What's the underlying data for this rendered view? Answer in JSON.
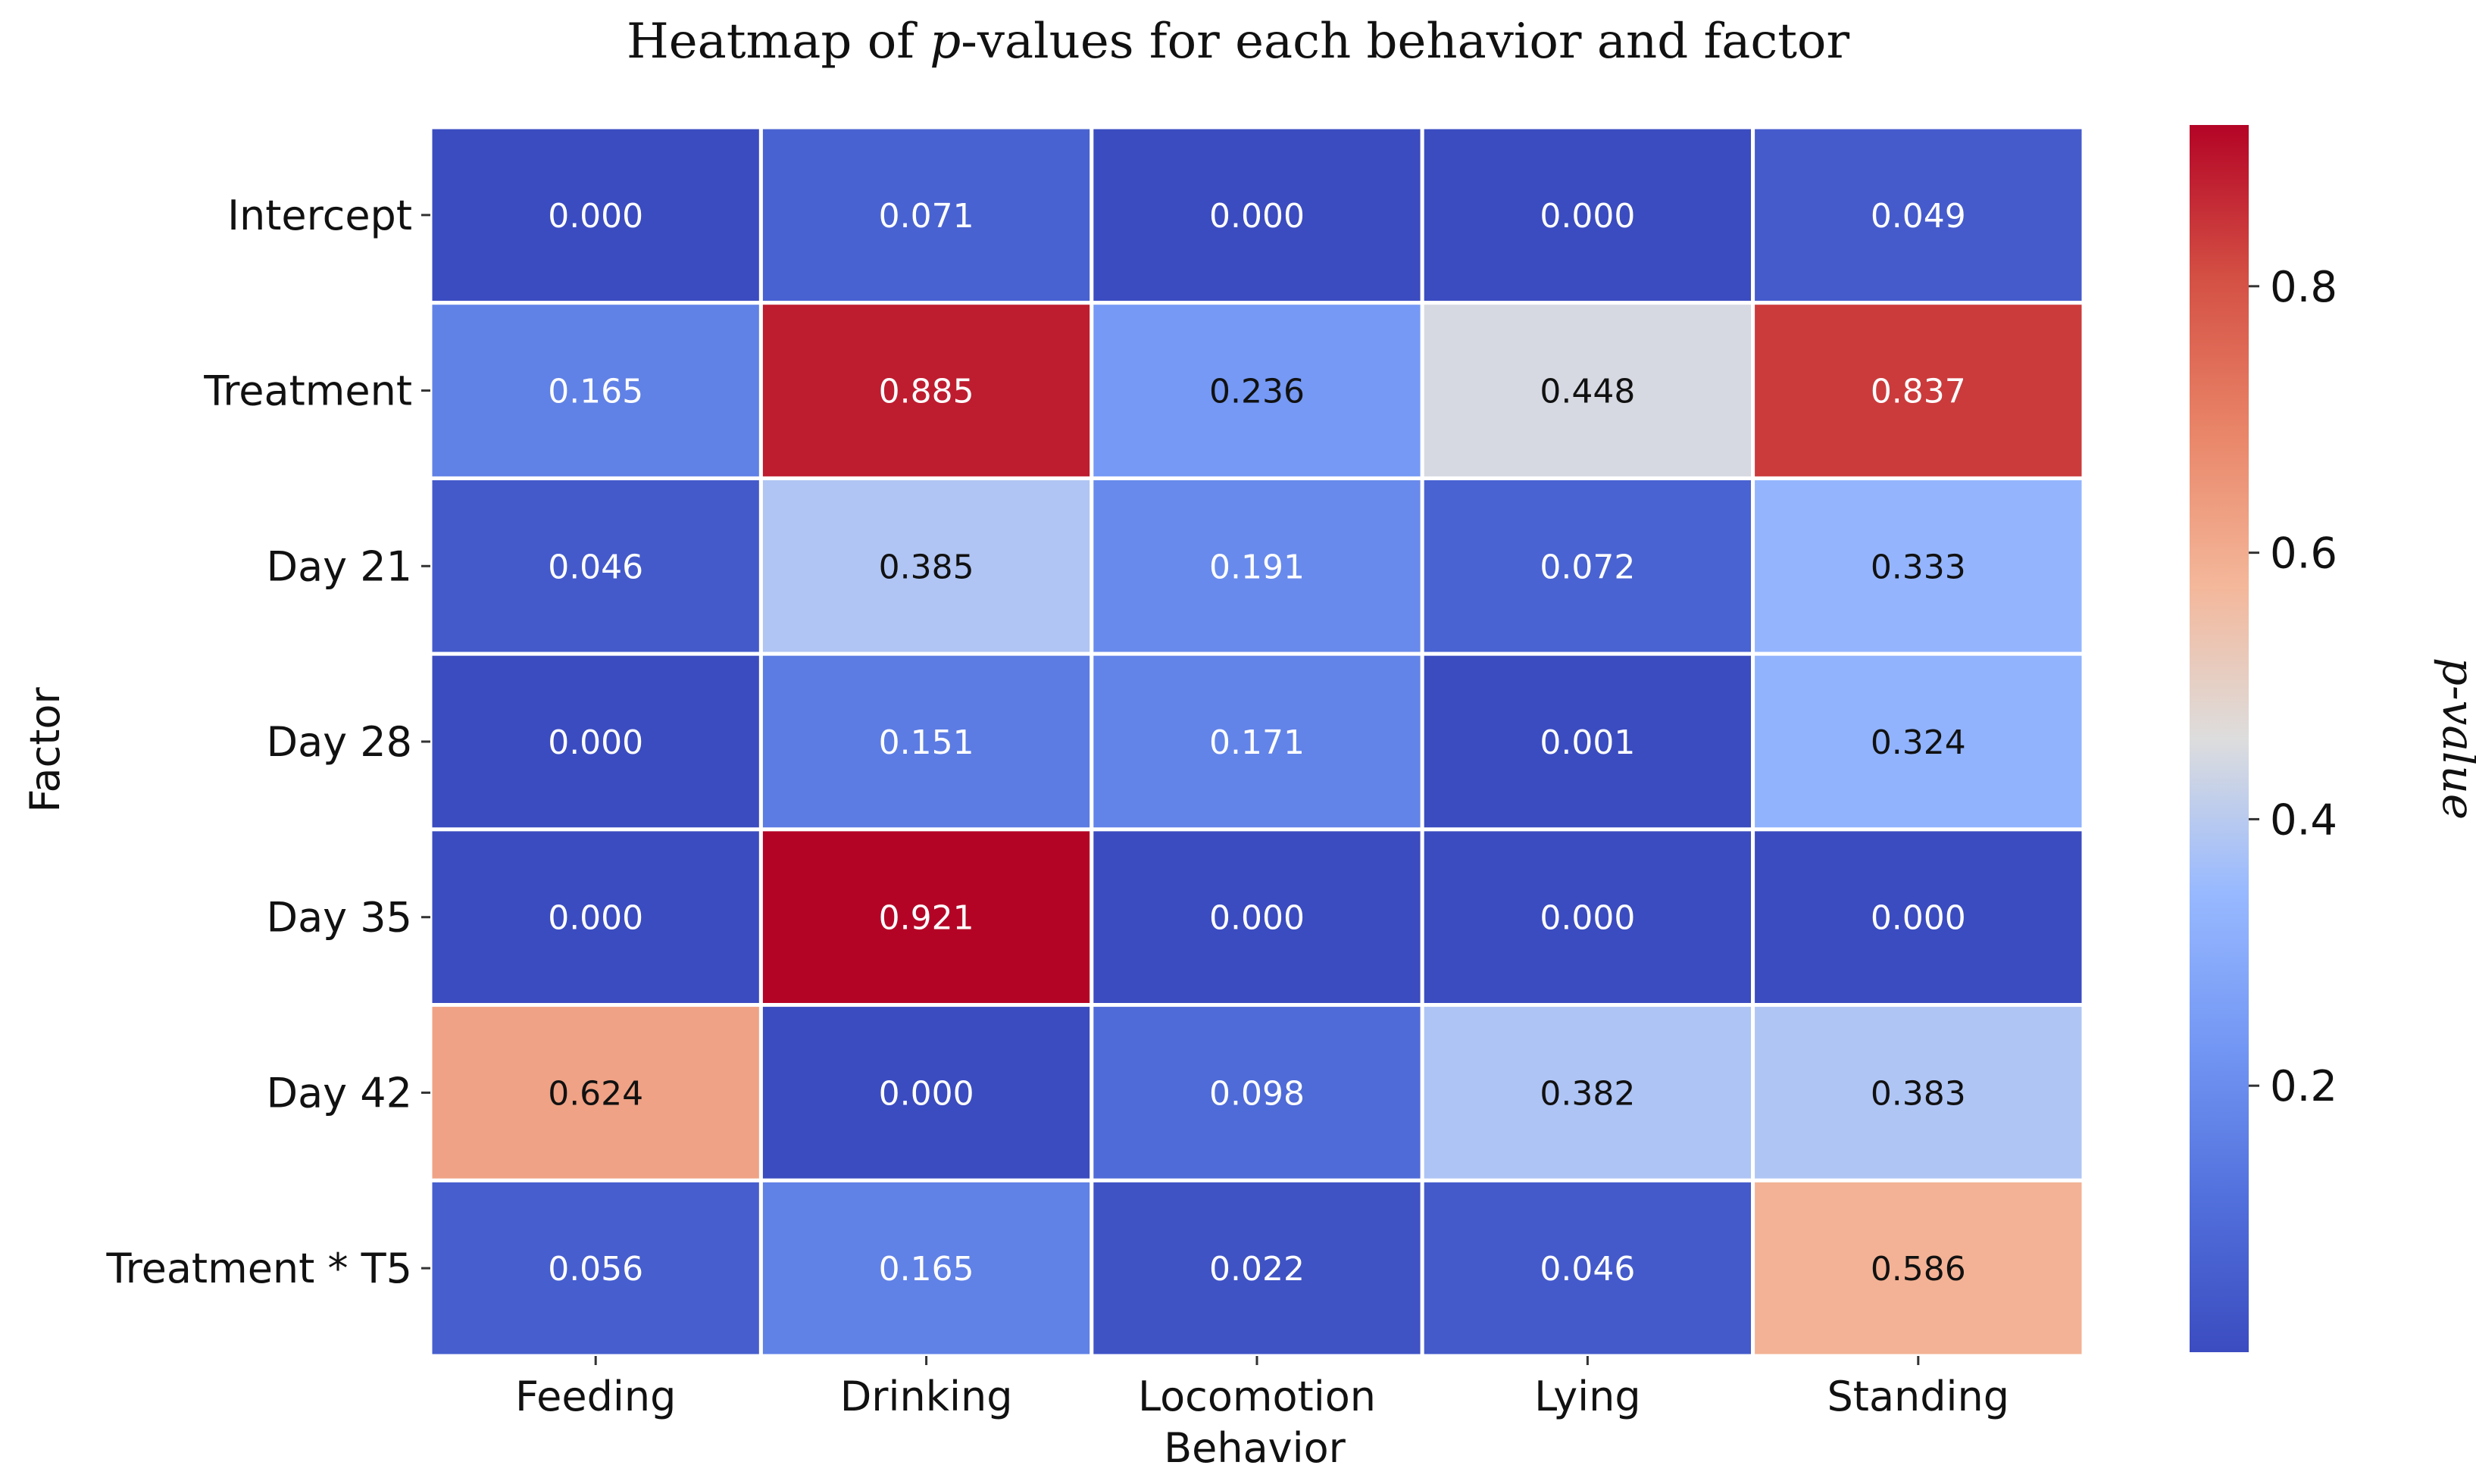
{
  "chart_data": {
    "type": "heatmap",
    "title": "Heatmap of p-values for each behavior and factor",
    "title_parts": [
      "Heatmap of ",
      "p",
      "-values for each behavior and factor"
    ],
    "xlabel": "Behavior",
    "ylabel": "Factor",
    "columns": [
      "Feeding",
      "Drinking",
      "Locomotion",
      "Lying",
      "Standing"
    ],
    "rows": [
      "Intercept",
      "Treatment",
      "Day 21",
      "Day 28",
      "Day 35",
      "Day 42",
      "Treatment * T5"
    ],
    "values": [
      [
        0.0,
        0.071,
        0.0,
        0.0,
        0.049
      ],
      [
        0.165,
        0.885,
        0.236,
        0.448,
        0.837
      ],
      [
        0.046,
        0.385,
        0.191,
        0.072,
        0.333
      ],
      [
        0.0,
        0.151,
        0.171,
        0.001,
        0.324
      ],
      [
        0.0,
        0.921,
        0.0,
        0.0,
        0.0
      ],
      [
        0.624,
        0.0,
        0.098,
        0.382,
        0.383
      ],
      [
        0.056,
        0.165,
        0.022,
        0.046,
        0.586
      ]
    ],
    "value_labels": [
      [
        "0.000",
        "0.071",
        "0.000",
        "0.000",
        "0.049"
      ],
      [
        "0.165",
        "0.885",
        "0.236",
        "0.448",
        "0.837"
      ],
      [
        "0.046",
        "0.385",
        "0.191",
        "0.072",
        "0.333"
      ],
      [
        "0.000",
        "0.151",
        "0.171",
        "0.001",
        "0.324"
      ],
      [
        "0.000",
        "0.921",
        "0.000",
        "0.000",
        "0.000"
      ],
      [
        "0.624",
        "0.000",
        "0.098",
        "0.382",
        "0.383"
      ],
      [
        "0.056",
        "0.165",
        "0.022",
        "0.046",
        "0.586"
      ]
    ],
    "colorbar": {
      "label_parts": [
        "p",
        "-value"
      ],
      "range": [
        0.0,
        0.921
      ],
      "ticks": [
        0.2,
        0.4,
        0.6,
        0.8
      ],
      "tick_labels": [
        "0.2",
        "0.4",
        "0.6",
        "0.8"
      ],
      "colormap": "coolwarm"
    }
  }
}
